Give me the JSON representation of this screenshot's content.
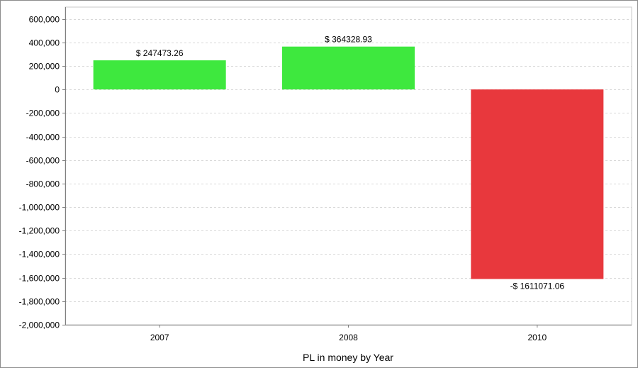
{
  "chart_data": {
    "type": "bar",
    "title": "",
    "xlabel": "PL in money by Year",
    "ylabel": "",
    "categories": [
      "2007",
      "2008",
      "2010"
    ],
    "values": [
      247473.26,
      364328.93,
      -1611071.06
    ],
    "data_labels": [
      "$ 247473.26",
      "$ 364328.93",
      "-$ 1611071.06"
    ],
    "ylim": [
      -2000000,
      700000
    ],
    "yticks": [
      600000,
      400000,
      200000,
      0,
      -200000,
      -400000,
      -600000,
      -800000,
      -1000000,
      -1200000,
      -1400000,
      -1600000,
      -1800000,
      -2000000
    ],
    "ytick_labels": [
      "600,000",
      "400,000",
      "200,000",
      "0",
      "-200,000",
      "-400,000",
      "-600,000",
      "-800,000",
      "-1,000,000",
      "-1,200,000",
      "-1,400,000",
      "-1,600,000",
      "-1,800,000",
      "-2,000,000"
    ],
    "grid": true,
    "legend": "none",
    "colors": {
      "positive": "#3ee83e",
      "negative": "#e8383d",
      "grid": "#d8d8d8",
      "axis": "#808080"
    }
  }
}
